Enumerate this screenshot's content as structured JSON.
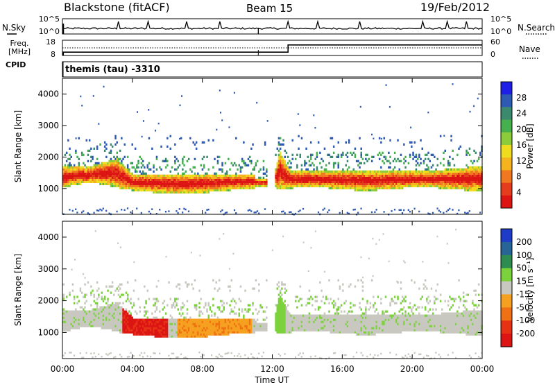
{
  "header": {
    "station": "Blackstone (fitACF)",
    "beam": "Beam 15",
    "date": "19/Feb/2012"
  },
  "cpid_text": "themis (tau) -3310",
  "chart_data": [
    {
      "type": "line",
      "name": "status-noise",
      "labels": {
        "left": "N.Sky",
        "right": "N.Search",
        "right_style": "dotted"
      },
      "y_left_ticks": [
        "10^5",
        "10^0"
      ],
      "y_right_ticks": [
        "10^5",
        "10^0"
      ],
      "xlim_hours": [
        0,
        24
      ],
      "baseline_level": 0.35,
      "spikes_hours": [
        3.2,
        4.9,
        7.1,
        9.0,
        12.9,
        14.6,
        17.0,
        20.6,
        22.0,
        23.1
      ],
      "notch_hours": [
        11.2
      ]
    },
    {
      "type": "line",
      "name": "status-freq",
      "labels": {
        "left_lines": [
          "Freq.",
          "[MHz]"
        ],
        "left_extra": "CPID",
        "right": "Nave",
        "right_style": "dotted"
      },
      "y_left_ticks": [
        "18",
        "8"
      ],
      "y_right_ticks": [
        "60",
        "0"
      ],
      "freq_steps": [
        {
          "from": 0.05,
          "to": 12.9,
          "mhz": 10.2
        },
        {
          "from": 12.9,
          "to": 24,
          "mhz": 14.9
        }
      ],
      "nave_level": 0.5
    },
    {
      "type": "heatmap",
      "name": "power",
      "ylabel": "Slant Range [km]",
      "xlim_hours": [
        0,
        24
      ],
      "ylim_km": [
        180,
        4500
      ],
      "y_ticks": [
        1000,
        2000,
        3000,
        4000
      ],
      "colorbar": {
        "label": "Power [dB]",
        "ticks": [
          "4",
          "8",
          "12",
          "16",
          "20",
          "24",
          "28"
        ],
        "colors": [
          "#1e1ee6",
          "#2f5ab3",
          "#3b8a6e",
          "#46b04e",
          "#8ccc3c",
          "#f0dc1e",
          "#f5b41e",
          "#f0781e",
          "#e63c1e",
          "#dc1414"
        ]
      }
    },
    {
      "type": "heatmap",
      "name": "velocity",
      "ylabel": "Slant Range [km]",
      "xlabel": "Time UT",
      "xlim_hours": [
        0,
        24
      ],
      "x_ticks": [
        "00:00",
        "04:00",
        "08:00",
        "12:00",
        "16:00",
        "20:00",
        "00:00"
      ],
      "ylim_km": [
        180,
        4500
      ],
      "y_ticks": [
        1000,
        2000,
        3000,
        4000
      ],
      "colorbar": {
        "label": "Velocity [m s⁻¹]",
        "ticks": [
          "200",
          "100",
          "50",
          "15",
          "-15",
          "-50",
          "-100",
          "-200"
        ],
        "colors": [
          "#1e3cc8",
          "#286496",
          "#2e8c50",
          "#7cd23c",
          "#c8c8c0",
          "#f5a01e",
          "#f07014",
          "#e63214",
          "#dc1414"
        ]
      }
    }
  ]
}
